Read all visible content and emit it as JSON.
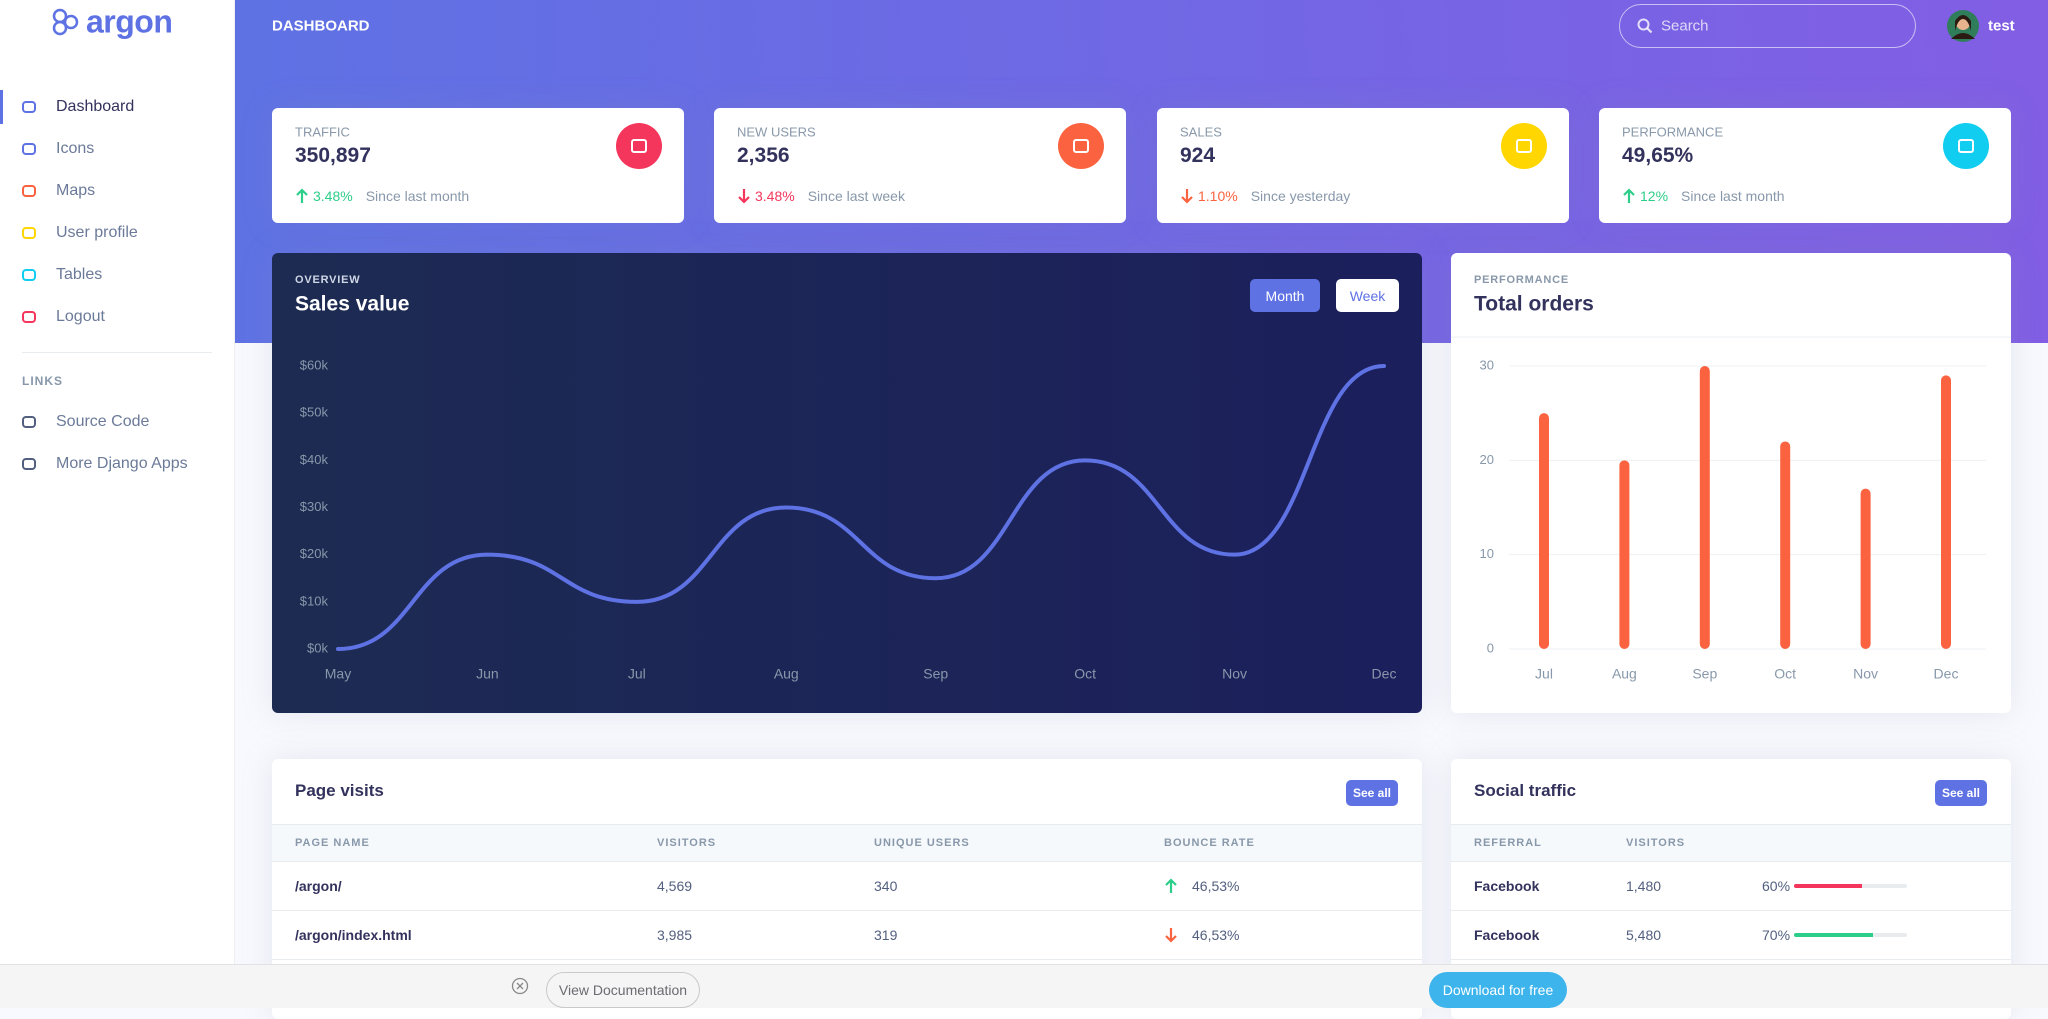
{
  "sidebar": {
    "brand": "argon",
    "nav": [
      {
        "label": "Dashboard",
        "icon_color": "#5e72e4",
        "active": true
      },
      {
        "label": "Icons",
        "icon_color": "#5e72e4",
        "active": false
      },
      {
        "label": "Maps",
        "icon_color": "#fb6340",
        "active": false
      },
      {
        "label": "User profile",
        "icon_color": "#ffd600",
        "active": false
      },
      {
        "label": "Tables",
        "icon_color": "#11cdef",
        "active": false
      },
      {
        "label": "Logout",
        "icon_color": "#f5365c",
        "active": false
      }
    ],
    "links_heading": "LINKS",
    "links": [
      {
        "label": "Source Code",
        "icon_color": "#525f7f"
      },
      {
        "label": "More Django Apps",
        "icon_color": "#525f7f"
      }
    ]
  },
  "header": {
    "title": "DASHBOARD",
    "search_placeholder": "Search",
    "user": "test"
  },
  "stats": [
    {
      "title": "TRAFFIC",
      "value": "350,897",
      "change": "3.48%",
      "trend": "up",
      "change_color": "#2dce89",
      "since": "Since last month",
      "icon_color": "#f5365c"
    },
    {
      "title": "NEW USERS",
      "value": "2,356",
      "change": "3.48%",
      "trend": "down",
      "change_color": "#f5365c",
      "since": "Since last week",
      "icon_color": "#fb6340"
    },
    {
      "title": "SALES",
      "value": "924",
      "change": "1.10%",
      "trend": "down",
      "change_color": "#fb6340",
      "since": "Since yesterday",
      "icon_color": "#ffd600"
    },
    {
      "title": "PERFORMANCE",
      "value": "49,65%",
      "change": "12%",
      "trend": "up",
      "change_color": "#2dce89",
      "since": "Since last month",
      "icon_color": "#11cdef"
    }
  ],
  "chart_data": [
    {
      "type": "line",
      "subtitle": "OVERVIEW",
      "title": "Sales value",
      "toggles": [
        {
          "label": "Month",
          "active": true
        },
        {
          "label": "Week",
          "active": false
        }
      ],
      "categories": [
        "May",
        "Jun",
        "Jul",
        "Aug",
        "Sep",
        "Oct",
        "Nov",
        "Dec"
      ],
      "values": [
        0,
        20,
        10,
        30,
        15,
        40,
        20,
        60
      ],
      "color": "#5e72e4",
      "ylim": [
        0,
        60
      ],
      "yticks": [
        {
          "value": 0,
          "label": "$0k"
        },
        {
          "value": 10,
          "label": "$10k"
        },
        {
          "value": 20,
          "label": "$20k"
        },
        {
          "value": 30,
          "label": "$30k"
        },
        {
          "value": 40,
          "label": "$40k"
        },
        {
          "value": 50,
          "label": "$50k"
        },
        {
          "value": 60,
          "label": "$60k"
        }
      ],
      "grid": false
    },
    {
      "type": "bar",
      "subtitle": "PERFORMANCE",
      "title": "Total orders",
      "categories": [
        "Jul",
        "Aug",
        "Sep",
        "Oct",
        "Nov",
        "Dec"
      ],
      "values": [
        25,
        20,
        30,
        22,
        17,
        29
      ],
      "color": "#fb6340",
      "ylim": [
        0,
        30
      ],
      "yticks": [
        0,
        10,
        20,
        30
      ],
      "grid": true
    }
  ],
  "page_visits": {
    "title": "Page visits",
    "button": "See all",
    "columns": [
      "PAGE NAME",
      "VISITORS",
      "UNIQUE USERS",
      "BOUNCE RATE"
    ],
    "rows": [
      [
        "/argon/",
        "4,569",
        "340",
        "46,53%"
      ],
      [
        "/argon/index.html",
        "3,985",
        "319",
        "46,53%"
      ]
    ],
    "bounce_trend": [
      "up",
      "down"
    ]
  },
  "social_traffic": {
    "title": "Social traffic",
    "button": "See all",
    "columns": [
      "REFERRAL",
      "VISITORS"
    ],
    "rows": [
      {
        "referral": "Facebook",
        "visitors": "1,480",
        "percent": 60,
        "percent_label": "60%",
        "bar_color": "#f5365c"
      },
      {
        "referral": "Facebook",
        "visitors": "5,480",
        "percent": 70,
        "percent_label": "70%",
        "bar_color": "#2dce89"
      }
    ]
  },
  "footer": {
    "doc_button": "View Documentation",
    "download_button": "Download for free"
  }
}
